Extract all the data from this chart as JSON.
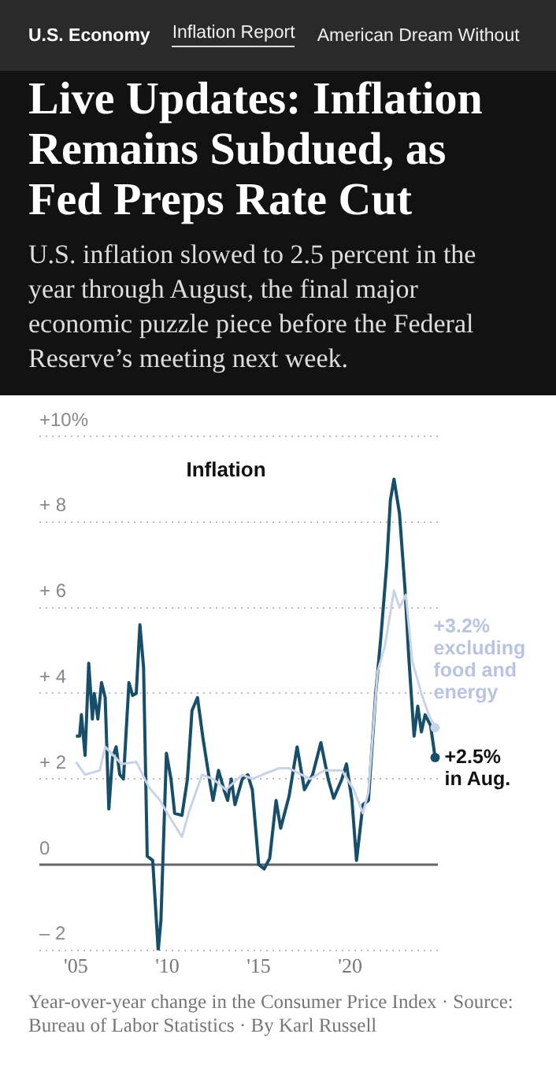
{
  "chart_data": {
    "type": "line",
    "title": "Live Updates: Inflation Remains Subdued, as Fed Preps Rate Cut",
    "subtitle": "U.S. inflation slowed to 2.5 percent in the year through August, the final major economic puzzle piece before the Federal Reserve’s meeting next week.",
    "annotations": [
      "U.S. Economy",
      "Inflation Report",
      "American Dream Without",
      "Inflation",
      {
        "text": "+3.2% excluding food and energy",
        "x": 2024.65,
        "y": 3.2
      },
      {
        "text": "+2.5% in Aug.",
        "x": 2024.65,
        "y": 2.5
      },
      "Year-over-year change in the Consumer Price Index · Source: Bureau of Labor Statistics · By Karl Russell"
    ],
    "xlim": [
      2003,
      2024.8
    ],
    "xticks": [
      {
        "value": 2005,
        "label": "'05"
      },
      {
        "value": 2010,
        "label": "'10"
      },
      {
        "value": 2015,
        "label": "'15"
      },
      {
        "value": 2020,
        "label": "'20"
      }
    ],
    "ylim": [
      -2,
      10
    ],
    "yticks": [
      {
        "value": -2,
        "label": "– 2"
      },
      {
        "value": 0,
        "label": "0"
      },
      {
        "value": 2,
        "label": "+ 2"
      },
      {
        "value": 4,
        "label": "+ 4"
      },
      {
        "value": 6,
        "label": "+ 6"
      },
      {
        "value": 8,
        "label": "+ 8"
      },
      {
        "value": 10,
        "label": "+10%"
      }
    ],
    "grid": "y",
    "marker": "none",
    "line_style": "solid",
    "ref_lines": [
      {
        "axis": "y",
        "value": 0,
        "color": "#666666"
      }
    ],
    "series": [
      {
        "color": "#c9d3e8",
        "x": [
          2005.0,
          2005.5,
          2006.3,
          2006.6,
          2007.5,
          2008.3,
          2009.0,
          2009.6,
          2010.0,
          2010.8,
          2011.2,
          2011.9,
          2012.5,
          2013.2,
          2014.1,
          2014.65,
          2015.2,
          2016.1,
          2016.66,
          2017.8,
          2018.6,
          2019.55,
          2020.2,
          2020.7,
          2021.0,
          2021.5,
          2021.9,
          2022.4,
          2022.7,
          2023.05,
          2023.4,
          2023.9,
          2024.3,
          2024.65
        ],
        "values": [
          2.4,
          2.1,
          2.2,
          2.75,
          2.35,
          2.4,
          1.8,
          1.5,
          1.2,
          0.65,
          1.25,
          2.1,
          2.0,
          1.75,
          2.1,
          2.0,
          2.1,
          2.25,
          2.25,
          2.0,
          2.2,
          2.2,
          1.75,
          1.2,
          1.7,
          4.5,
          5.1,
          6.4,
          6.0,
          6.3,
          4.75,
          4.0,
          3.5,
          3.2
        ]
      },
      {
        "color": "#174f6b",
        "x": [
          2005.0,
          2005.2,
          2005.3,
          2005.5,
          2005.7,
          2005.9,
          2006.0,
          2006.2,
          2006.4,
          2006.6,
          2006.8,
          2007.0,
          2007.2,
          2007.4,
          2007.6,
          2007.9,
          2008.1,
          2008.3,
          2008.5,
          2008.7,
          2008.9,
          2009.2,
          2009.5,
          2009.65,
          2009.95,
          2010.2,
          2010.4,
          2010.8,
          2011.1,
          2011.35,
          2011.65,
          2011.95,
          2012.3,
          2012.5,
          2012.8,
          2013.1,
          2013.3,
          2013.5,
          2013.7,
          2014.1,
          2014.4,
          2014.65,
          2015.0,
          2015.3,
          2015.6,
          2015.95,
          2016.2,
          2016.66,
          2017.1,
          2017.5,
          2017.95,
          2018.4,
          2018.8,
          2019.1,
          2019.55,
          2019.8,
          2020.1,
          2020.35,
          2020.7,
          2021.0,
          2021.4,
          2021.7,
          2022.0,
          2022.2,
          2022.4,
          2022.7,
          2023.0,
          2023.2,
          2023.5,
          2023.7,
          2023.9,
          2024.1,
          2024.4,
          2024.65
        ],
        "values": [
          3.0,
          3.0,
          3.5,
          2.55,
          4.7,
          3.4,
          4.0,
          3.4,
          4.25,
          3.9,
          1.3,
          2.5,
          2.75,
          2.1,
          2.0,
          4.25,
          3.95,
          4.0,
          5.6,
          4.6,
          0.2,
          0.1,
          -2.0,
          -1.3,
          2.6,
          2.0,
          1.2,
          1.15,
          2.0,
          3.6,
          3.9,
          2.95,
          2.0,
          1.5,
          2.2,
          1.75,
          1.5,
          2.0,
          1.4,
          2.0,
          2.1,
          1.75,
          0.0,
          -0.1,
          0.15,
          1.5,
          0.85,
          1.6,
          2.75,
          1.75,
          2.1,
          2.85,
          2.0,
          1.55,
          2.0,
          2.35,
          1.5,
          0.1,
          1.4,
          1.5,
          4.0,
          5.4,
          7.0,
          8.5,
          9.0,
          8.2,
          6.45,
          4.9,
          3.0,
          3.7,
          3.1,
          3.5,
          3.25,
          2.5
        ]
      }
    ]
  }
}
